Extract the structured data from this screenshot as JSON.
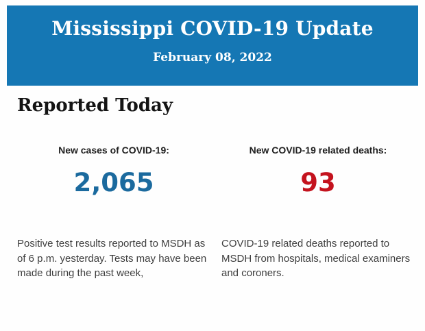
{
  "colors": {
    "header_bg": "#1577b4",
    "cases_value": "#1b6a9e",
    "deaths_value": "#c4131e"
  },
  "header": {
    "title": "Mississippi COVID-19 Update",
    "date": "February 08, 2022"
  },
  "section": {
    "heading": "Reported Today"
  },
  "stats": [
    {
      "label": "New cases of COVID-19:",
      "value": "2,065",
      "value_color": "#1b6a9e",
      "description": "Positive test results reported to MSDH as of 6 p.m. yesterday. Tests may have been made during the past week,"
    },
    {
      "label": "New COVID-19 related deaths:",
      "value": "93",
      "value_color": "#c4131e",
      "description": "COVID-19 related deaths reported to MSDH from hospitals, medical examiners and coroners."
    }
  ]
}
